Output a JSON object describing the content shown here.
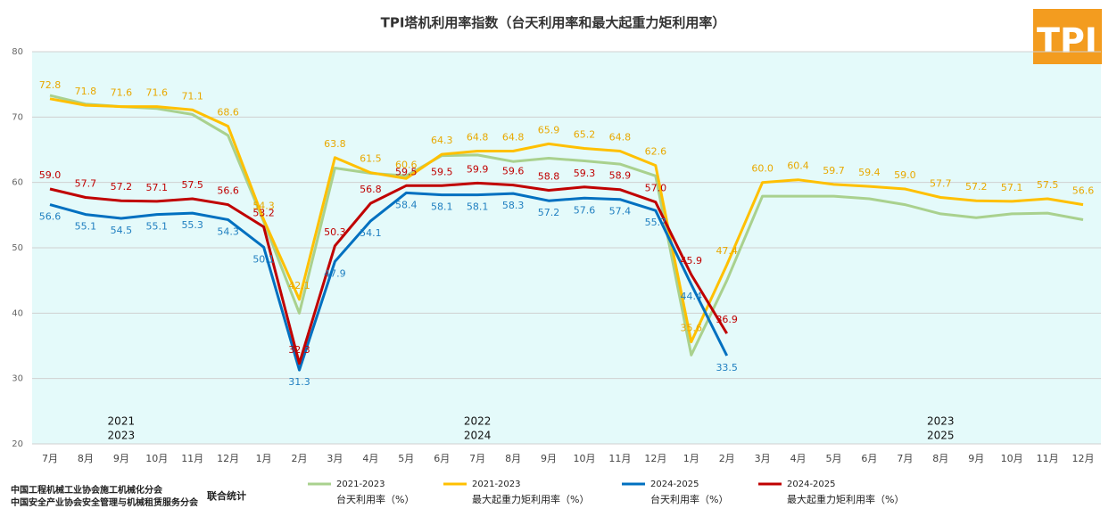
{
  "chart_data": {
    "type": "line",
    "title": "TPI塔机利用率指数（台天利用率和最大起重力矩利用率）",
    "categories": [
      "7月",
      "8月",
      "9月",
      "10月",
      "11月",
      "12月",
      "1月",
      "2月",
      "3月",
      "4月",
      "5月",
      "6月",
      "7月",
      "8月",
      "9月",
      "10月",
      "11月",
      "12月",
      "1月",
      "2月",
      "3月",
      "4月",
      "5月",
      "6月",
      "7月",
      "8月",
      "9月",
      "10月",
      "11月",
      "12月"
    ],
    "ylim": [
      20,
      80
    ],
    "yticks": [
      20,
      30,
      40,
      50,
      60,
      70,
      80
    ],
    "grid": true,
    "annotations": [
      {
        "lines": [
          "2021",
          "2023"
        ]
      },
      {
        "lines": [
          "2022",
          "2024"
        ]
      },
      {
        "lines": [
          "2023",
          "2025"
        ]
      }
    ],
    "series": [
      {
        "name": "2021-2023",
        "metric": "台天利用率（%）",
        "color": "#a9d18e",
        "values": [
          73.3,
          72.0,
          71.6,
          71.3,
          70.4,
          67.2,
          54.0,
          40.0,
          62.2,
          61.4,
          61.0,
          64.1,
          64.2,
          63.2,
          63.7,
          63.3,
          62.8,
          61.0,
          33.6,
          45.0,
          57.9,
          57.9,
          57.9,
          57.5,
          56.6,
          55.2,
          54.6,
          55.2,
          55.3,
          54.3
        ]
      },
      {
        "name": "2021-2023",
        "metric": "最大起重力矩利用率（%）",
        "color": "#ffc000",
        "label_color": "#e8a800",
        "values": [
          72.8,
          71.8,
          71.6,
          71.6,
          71.1,
          68.6,
          54.3,
          42.1,
          63.8,
          61.5,
          60.6,
          64.3,
          64.8,
          64.8,
          65.9,
          65.2,
          64.8,
          62.6,
          35.6,
          47.4,
          60.0,
          60.4,
          59.7,
          59.4,
          59.0,
          57.7,
          57.2,
          57.1,
          57.5,
          56.6
        ],
        "value_labels": [
          "72.8",
          "71.8",
          "71.6",
          "71.6",
          "71.1",
          "68.6",
          "54.3",
          "42.1",
          "63.8",
          "61.5",
          "60.6",
          "64.3",
          "64.8",
          "64.8",
          "65.9",
          "65.2",
          "64.8",
          "62.6",
          "35.6",
          "47.4",
          "60.0",
          "60.4",
          "59.7",
          "59.4",
          "59.0",
          "57.7",
          "57.2",
          "57.1",
          "57.5",
          "56.6"
        ]
      },
      {
        "name": "2024-2025",
        "metric": "台天利用率（%）",
        "color": "#0070c0",
        "label_color": "#1f7fc0",
        "values": [
          56.6,
          55.1,
          54.5,
          55.1,
          55.3,
          54.3,
          50.1,
          31.3,
          47.9,
          54.1,
          58.4,
          58.1,
          58.1,
          58.3,
          57.2,
          57.6,
          57.4,
          55.7,
          44.4,
          33.5,
          null,
          null,
          null,
          null,
          null,
          null,
          null,
          null,
          null,
          null
        ],
        "value_labels": [
          "56.6",
          "55.1",
          "54.5",
          "55.1",
          "55.3",
          "54.3",
          "50.1",
          "31.3",
          "47.9",
          "54.1",
          "58.4",
          "58.1",
          "58.1",
          "58.3",
          "57.2",
          "57.6",
          "57.4",
          "55.7",
          "44.4",
          "33.5",
          null,
          null,
          null,
          null,
          null,
          null,
          null,
          null,
          null,
          null
        ]
      },
      {
        "name": "2024-2025",
        "metric": "最大起重力矩利用率（%）",
        "color": "#c00000",
        "label_color": "#c00000",
        "values": [
          59.0,
          57.7,
          57.2,
          57.1,
          57.5,
          56.6,
          53.2,
          32.3,
          50.3,
          56.8,
          59.5,
          59.5,
          59.9,
          59.6,
          58.8,
          59.3,
          58.9,
          57.0,
          45.9,
          36.9,
          null,
          null,
          null,
          null,
          null,
          null,
          null,
          null,
          null,
          null
        ],
        "value_labels": [
          "59.0",
          "57.7",
          "57.2",
          "57.1",
          "57.5",
          "56.6",
          "53.2",
          "32.3",
          "50.3",
          "56.8",
          "59.5",
          "59.5",
          "59.9",
          "59.6",
          "58.8",
          "59.3",
          "58.9",
          "57.0",
          "45.9",
          "36.9",
          null,
          null,
          null,
          null,
          null,
          null,
          null,
          null,
          null,
          null
        ]
      }
    ]
  },
  "logo": "TPI",
  "source": {
    "lines": [
      "中国工程机械工业协会施工机械化分会",
      "中国安全产业协会安全管理与机械租赁服务分会"
    ],
    "note": "联合统计"
  }
}
